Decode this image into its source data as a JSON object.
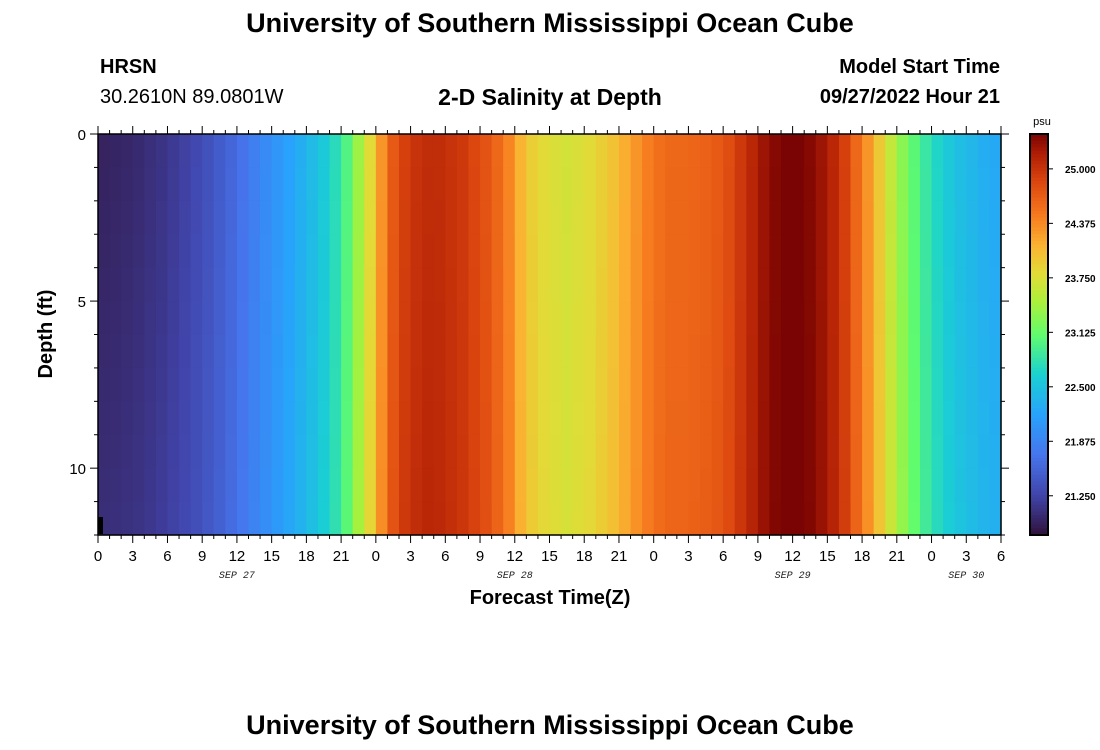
{
  "page": {
    "title_top": "University of Southern Mississippi Ocean Cube",
    "title_bottom": "University of Southern Mississippi Ocean Cube",
    "station_name": "HRSN",
    "station_coords": "30.2610N  89.0801W",
    "plot_title": "2-D Salinity at Depth",
    "model_start_label": "Model Start Time",
    "model_start_value": "09/27/2022 Hour 21"
  },
  "chart_data": {
    "type": "heatmap",
    "title": "2-D Salinity at Depth",
    "xlabel": "Forecast Time(Z)",
    "ylabel": "Depth (ft)",
    "x_ticks": [
      "0",
      "3",
      "6",
      "9",
      "12",
      "15",
      "18",
      "21",
      "0",
      "3",
      "6",
      "9",
      "12",
      "15",
      "18",
      "21",
      "0",
      "3",
      "6",
      "9",
      "12",
      "15",
      "18",
      "21",
      "0",
      "3",
      "6"
    ],
    "x_range_hours": [
      0,
      78
    ],
    "date_labels": [
      {
        "label": "SEP 27",
        "hour": 12
      },
      {
        "label": "SEP 28",
        "hour": 36
      },
      {
        "label": "SEP 29",
        "hour": 60
      },
      {
        "label": "SEP 30",
        "hour": 75
      }
    ],
    "y_ticks": [
      "0",
      "5",
      "10"
    ],
    "y_tick_values": [
      0,
      5,
      10
    ],
    "ylim": [
      0,
      12
    ],
    "y_inverted": true,
    "colorbar": {
      "unit": "psu",
      "min": 20.8,
      "max": 25.4,
      "tick_labels": [
        "25.000",
        "24.375",
        "23.750",
        "23.125",
        "22.500",
        "21.875",
        "21.250"
      ],
      "tick_values": [
        25.0,
        24.375,
        23.75,
        23.125,
        22.5,
        21.875,
        21.25
      ]
    },
    "salinity_surface_by_hour": [
      20.95,
      20.97,
      20.99,
      21.02,
      21.06,
      21.1,
      21.16,
      21.22,
      21.3,
      21.38,
      21.48,
      21.58,
      21.7,
      21.82,
      21.94,
      22.06,
      22.18,
      22.3,
      22.42,
      22.56,
      22.74,
      23.0,
      23.4,
      23.8,
      24.3,
      24.7,
      24.9,
      25.0,
      25.05,
      25.05,
      25.0,
      24.95,
      24.85,
      24.75,
      24.6,
      24.4,
      24.1,
      23.9,
      23.8,
      23.75,
      23.7,
      23.75,
      23.8,
      23.9,
      24.0,
      24.15,
      24.3,
      24.45,
      24.55,
      24.6,
      24.6,
      24.62,
      24.65,
      24.7,
      24.8,
      24.95,
      25.1,
      25.25,
      25.35,
      25.4,
      25.4,
      25.35,
      25.25,
      25.1,
      24.9,
      24.6,
      24.3,
      23.95,
      23.6,
      23.3,
      23.05,
      22.85,
      22.68,
      22.55,
      22.45,
      22.38,
      22.3,
      22.25,
      22.2
    ],
    "salinity_bottom_by_hour": [
      21.05,
      21.06,
      21.08,
      21.1,
      21.14,
      21.18,
      21.23,
      21.29,
      21.36,
      21.44,
      21.53,
      21.63,
      21.74,
      21.86,
      21.98,
      22.1,
      22.22,
      22.34,
      22.46,
      22.6,
      22.78,
      23.05,
      23.45,
      23.85,
      24.35,
      24.75,
      24.95,
      25.05,
      25.1,
      25.08,
      25.03,
      24.97,
      24.88,
      24.78,
      24.63,
      24.43,
      24.13,
      23.93,
      23.82,
      23.77,
      23.72,
      23.77,
      23.82,
      23.92,
      24.02,
      24.17,
      24.32,
      24.47,
      24.57,
      24.62,
      24.62,
      24.64,
      24.67,
      24.72,
      24.82,
      24.97,
      25.12,
      25.27,
      25.37,
      25.4,
      25.4,
      25.37,
      25.27,
      25.12,
      24.92,
      24.63,
      24.33,
      23.98,
      23.65,
      23.35,
      23.1,
      22.9,
      22.73,
      22.6,
      22.5,
      22.43,
      22.36,
      22.32,
      22.3
    ]
  }
}
